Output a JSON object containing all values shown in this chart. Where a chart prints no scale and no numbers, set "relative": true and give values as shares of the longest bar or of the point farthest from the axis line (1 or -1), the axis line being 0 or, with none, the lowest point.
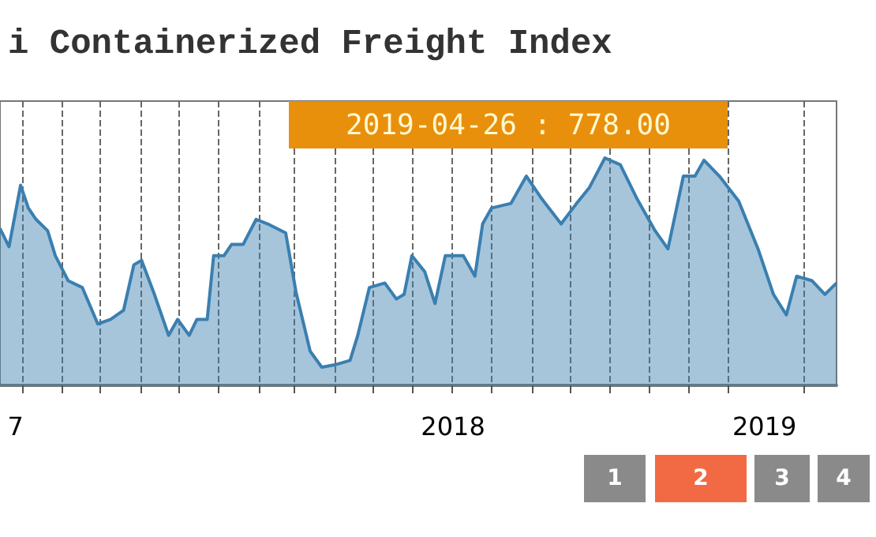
{
  "chart_data": {
    "type": "area",
    "title": "i Containerized Freight Index",
    "relative": true,
    "color": "#3a7fb0",
    "x": [
      "2017-07-15",
      "2017-07-22",
      "2017-07-31",
      "2017-08-06",
      "2017-08-12",
      "2017-08-21",
      "2017-08-27",
      "2017-09-06",
      "2017-09-17",
      "2017-09-29",
      "2017-10-09",
      "2017-10-19",
      "2017-10-27",
      "2017-11-02",
      "2017-11-12",
      "2017-11-23",
      "2017-11-30",
      "2017-12-09",
      "2017-12-15",
      "2017-12-23",
      "2017-12-28",
      "2018-01-05",
      "2018-01-11",
      "2018-01-20",
      "2018-01-30",
      "2018-02-08",
      "2018-02-22",
      "2018-03-02",
      "2018-03-13",
      "2018-03-22",
      "2018-04-01",
      "2018-04-13",
      "2018-04-19",
      "2018-04-28",
      "2018-05-10",
      "2018-05-19",
      "2018-05-25",
      "2018-05-31",
      "2018-06-10",
      "2018-06-18",
      "2018-06-26",
      "2018-07-10",
      "2018-07-19",
      "2018-07-25",
      "2018-08-01",
      "2018-08-16",
      "2018-08-28",
      "2018-09-09",
      "2018-09-24",
      "2018-10-06",
      "2018-10-16",
      "2018-10-28",
      "2018-11-09",
      "2018-11-22",
      "2018-12-06",
      "2018-12-16",
      "2018-12-28",
      "2019-01-06",
      "2019-01-13",
      "2019-01-25",
      "2019-02-09",
      "2019-02-24",
      "2019-03-08",
      "2019-03-18",
      "2019-03-26",
      "2019-04-07",
      "2019-04-17",
      "2019-04-26"
    ],
    "values": [
      0.69,
      0.61,
      0.88,
      0.78,
      0.73,
      0.68,
      0.57,
      0.46,
      0.43,
      0.27,
      0.29,
      0.33,
      0.53,
      0.55,
      0.4,
      0.22,
      0.29,
      0.22,
      0.29,
      0.29,
      0.57,
      0.57,
      0.62,
      0.62,
      0.73,
      0.71,
      0.67,
      0.41,
      0.15,
      0.08,
      0.09,
      0.11,
      0.22,
      0.43,
      0.45,
      0.38,
      0.4,
      0.57,
      0.5,
      0.36,
      0.57,
      0.57,
      0.48,
      0.71,
      0.78,
      0.8,
      0.92,
      0.82,
      0.71,
      0.8,
      0.87,
      1.0,
      0.97,
      0.82,
      0.68,
      0.6,
      0.92,
      0.92,
      0.99,
      0.92,
      0.81,
      0.6,
      0.4,
      0.31,
      0.48,
      0.46,
      0.4,
      0.45
    ],
    "xlim": [
      "2017-07-15",
      "2019-04-26"
    ],
    "xticks": [
      {
        "value": "2017-07-27",
        "label": "7"
      },
      {
        "value": "2017-08-01",
        "label": null
      },
      {
        "value": "2017-09-01",
        "label": null
      },
      {
        "value": "2017-10-01",
        "label": null
      },
      {
        "value": "2017-11-01",
        "label": null
      },
      {
        "value": "2017-12-01",
        "label": null
      },
      {
        "value": "2018-01-01",
        "label": null
      },
      {
        "value": "2018-02-01",
        "label": null
      },
      {
        "value": "2018-03-01",
        "label": null
      },
      {
        "value": "2018-04-01",
        "label": null
      },
      {
        "value": "2018-05-01",
        "label": null
      },
      {
        "value": "2018-06-01",
        "label": null
      },
      {
        "value": "2018-07-01",
        "label": null
      },
      {
        "value": "2018-07-02",
        "label": "2018"
      },
      {
        "value": "2018-08-01",
        "label": null
      },
      {
        "value": "2018-09-01",
        "label": null
      },
      {
        "value": "2018-10-01",
        "label": null
      },
      {
        "value": "2018-11-01",
        "label": null
      },
      {
        "value": "2018-12-01",
        "label": null
      },
      {
        "value": "2019-01-01",
        "label": null
      },
      {
        "value": "2019-02-01",
        "label": null
      },
      {
        "value": "2019-03-01",
        "label": "2019"
      },
      {
        "value": "2019-04-01",
        "label": null
      }
    ],
    "grid": "x",
    "marker": "none",
    "annotations": [
      "2019-04-26 : 778.00",
      "1",
      "2",
      "3",
      "4"
    ]
  }
}
